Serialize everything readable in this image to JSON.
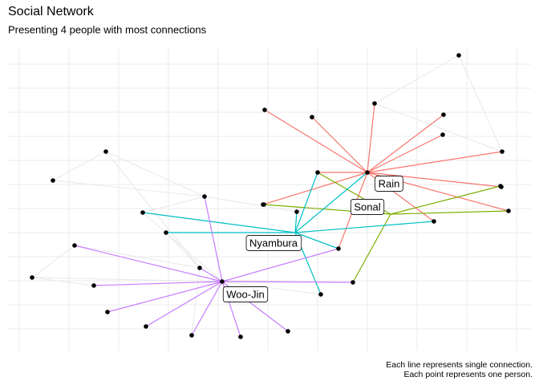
{
  "header": {
    "title": "Social Network",
    "subtitle": "Presenting 4 people with most connections"
  },
  "people": [
    {
      "label": "Rain",
      "color": "#F8766D"
    },
    {
      "label": "Sonal",
      "color": "#7CAE00"
    },
    {
      "label": "Nyambura",
      "color": "#00BFC4"
    },
    {
      "label": "Woo-Jin",
      "color": "#C77CFF"
    }
  ],
  "caption": [
    "Each line represents single connection.",
    "Each point represents one person."
  ]
}
